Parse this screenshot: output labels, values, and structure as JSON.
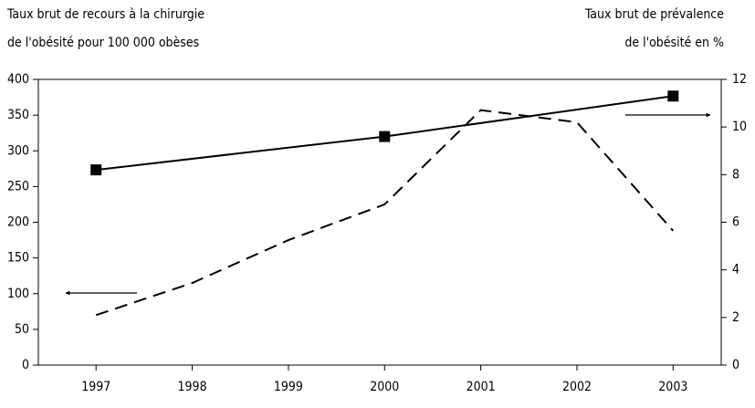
{
  "chart_data": {
    "type": "line",
    "y_label_lines": [
      "Taux brut de recours à la chirurgie",
      "de l'obésité  pour 100 000 obèses"
    ],
    "y2_label_lines": [
      "Taux brut de prévalence",
      "de l'obésité en %"
    ],
    "xlim": [
      1996.4,
      2003.5
    ],
    "xticks": [
      1997,
      1998,
      1999,
      2000,
      2001,
      2002,
      2003
    ],
    "ylim": [
      0,
      400
    ],
    "yticks": [
      0,
      50,
      100,
      150,
      200,
      250,
      300,
      350,
      400
    ],
    "y2lim": [
      0,
      12
    ],
    "y2ticks": [
      0,
      2,
      4,
      6,
      8,
      10,
      12
    ],
    "series": [
      {
        "color": "#000000",
        "style": "dashed",
        "x": [
          1997,
          1998,
          1999,
          2000,
          2001,
          2002,
          2003
        ],
        "values": [
          70,
          115,
          175,
          225,
          357,
          340,
          188
        ]
      },
      {
        "color": "#000000",
        "style": "solid",
        "marker": "square",
        "axis": "y2",
        "x": [
          1997,
          2000,
          2003
        ],
        "values": [
          8.2,
          9.6,
          11.3
        ]
      }
    ]
  }
}
